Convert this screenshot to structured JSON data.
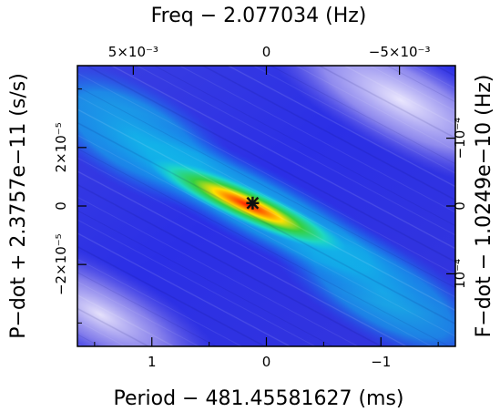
{
  "chart_data": {
    "type": "heatmap",
    "title": "",
    "axes": {
      "top": {
        "label": "Freq − 2.077034 (Hz)",
        "range": [
          0.0071,
          -0.0071
        ],
        "ticks": [
          {
            "value": -0.005,
            "label": "−5×10⁻³"
          },
          {
            "value": 0,
            "label": "0"
          },
          {
            "value": 0.005,
            "label": "5×10⁻³"
          }
        ]
      },
      "bottom": {
        "label": "Period − 481.45581627 (ms)",
        "range": [
          1.65,
          -1.65
        ],
        "ticks": [
          {
            "value": 1,
            "label": "1"
          },
          {
            "value": 0,
            "label": "0"
          },
          {
            "value": -1,
            "label": "−1"
          }
        ]
      },
      "left": {
        "label": "P−dot + 2.3757e−11 (s/s)",
        "range": [
          4.8e-05,
          -4.8e-05
        ],
        "ticks": [
          {
            "value": -2e-05,
            "label": "−2×10⁻⁵"
          },
          {
            "value": 0,
            "label": "0"
          },
          {
            "value": 2e-05,
            "label": "2×10⁻⁵"
          }
        ]
      },
      "right": {
        "label": "F−dot − 1.0249e−10 (Hz)",
        "range": [
          -0.000207,
          0.000207
        ],
        "ticks": [
          {
            "value": 0.0001,
            "label": "10⁻⁴"
          },
          {
            "value": 0,
            "label": "0"
          },
          {
            "value": -0.0001,
            "label": "−10⁻⁴"
          }
        ]
      }
    },
    "best_fit_marker": {
      "period": 0.12,
      "pdot": 1e-06
    },
    "ridge": {
      "direction": "negative slope (upper-left to lower-right)",
      "peak": {
        "period": 0.1,
        "pdot": 2e-06
      },
      "colorscale": [
        "#f2efff",
        "#b7aef0",
        "#5a5ae6",
        "#2233ee",
        "#00c8e8",
        "#1fe5b0",
        "#2ad24a",
        "#ffe000",
        "#ff8000",
        "#ff2000"
      ]
    }
  }
}
